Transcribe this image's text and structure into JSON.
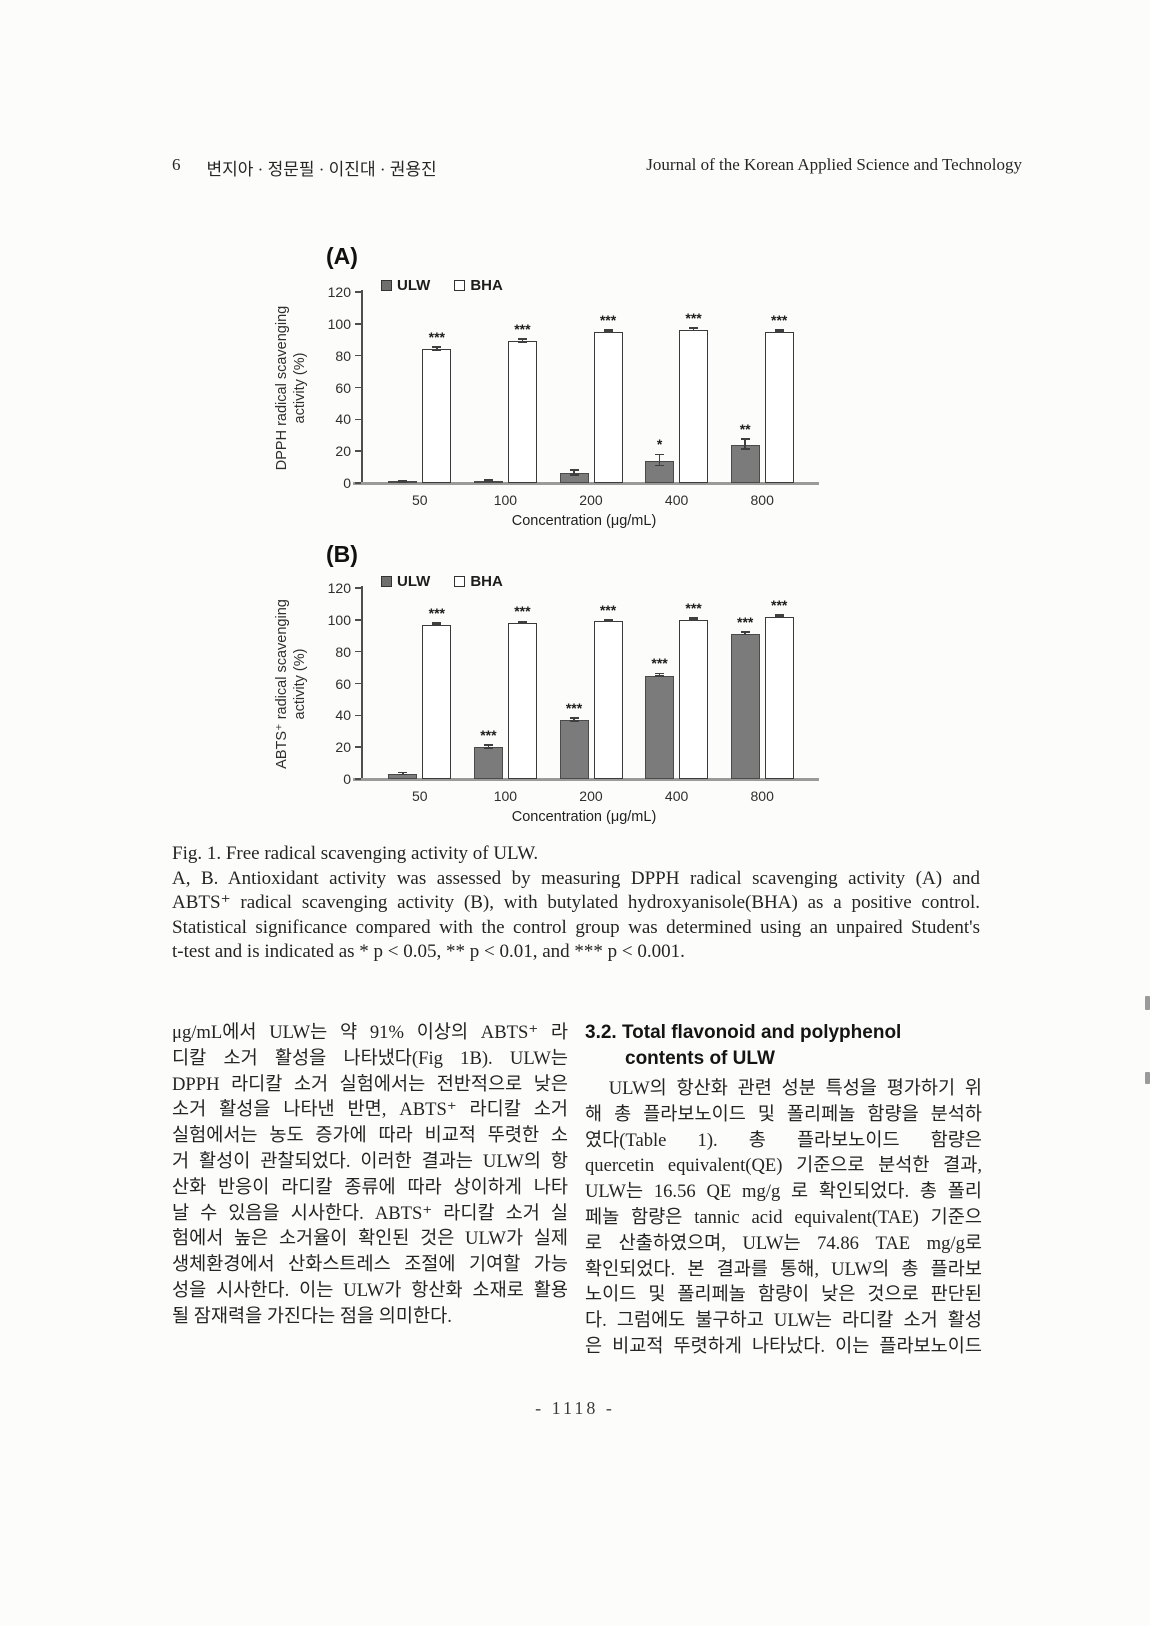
{
  "header": {
    "page_no": "6",
    "authors": "변지아 · 정문필 · 이진대 · 권용진",
    "journal": "Journal of the Korean Applied Science and Technology"
  },
  "figure": {
    "panel_a_label": "(A)",
    "panel_b_label": "(B)",
    "caption_lines": [
      "Fig. 1. Free radical scavenging activity of ULW.",
      "A, B. Antioxidant activity was assessed by measuring DPPH radical scavenging activity (A) and",
      "ABTS⁺ radical scavenging activity (B), with butylated hydroxyanisole(BHA) as a positive control.",
      "Statistical significance compared with the control group was determined using an unpaired Student's",
      "t-test and is indicated as * p < 0.05, ** p < 0.01, and *** p < 0.001."
    ]
  },
  "chart_data": [
    {
      "type": "bar",
      "panel": "A",
      "title": "",
      "ylabel": "DPPH radical scavenging activity (%)",
      "ylabel_lines": [
        "DPPH radical scavenging",
        "activity (%)"
      ],
      "xlabel": "Concentration (μg/mL)",
      "categories": [
        "50",
        "100",
        "200",
        "400",
        "800"
      ],
      "ylim": [
        0,
        120
      ],
      "yticks": [
        0,
        20,
        40,
        60,
        80,
        100,
        120
      ],
      "legend": [
        "ULW",
        "BHA"
      ],
      "legend_position": "top-left",
      "grid": false,
      "series": [
        {
          "name": "ULW",
          "values": [
            0.5,
            1,
            6,
            14,
            24
          ],
          "errors": [
            0.4,
            0.4,
            1.5,
            3.5,
            3.0
          ],
          "sig": [
            "",
            "",
            "",
            "*",
            "**"
          ]
        },
        {
          "name": "BHA",
          "values": [
            84,
            89,
            95,
            96,
            95
          ],
          "errors": [
            1.0,
            1.0,
            0.8,
            0.8,
            0.8
          ],
          "sig": [
            "***",
            "***",
            "***",
            "***",
            "***"
          ]
        }
      ]
    },
    {
      "type": "bar",
      "panel": "B",
      "title": "",
      "ylabel": "ABTS⁺ radical scavenging activity (%)",
      "ylabel_lines": [
        "ABTS⁺ radical scavenging",
        "activity (%)"
      ],
      "xlabel": "Concentration (μg/mL)",
      "categories": [
        "50",
        "100",
        "200",
        "400",
        "800"
      ],
      "ylim": [
        0,
        120
      ],
      "yticks": [
        0,
        20,
        40,
        60,
        80,
        100,
        120
      ],
      "legend": [
        "ULW",
        "BHA"
      ],
      "legend_position": "top-left",
      "grid": false,
      "series": [
        {
          "name": "ULW",
          "values": [
            3,
            20,
            37,
            65,
            91
          ],
          "errors": [
            0.6,
            1.0,
            1.0,
            0.8,
            0.8
          ],
          "sig": [
            "",
            "***",
            "***",
            "***",
            "***"
          ]
        },
        {
          "name": "BHA",
          "values": [
            97,
            98,
            99,
            100,
            102
          ],
          "errors": [
            0.5,
            0.5,
            0.5,
            0.5,
            0.5
          ],
          "sig": [
            "***",
            "***",
            "***",
            "***",
            "***"
          ]
        }
      ]
    }
  ],
  "body": {
    "left_column_lines": [
      "μg/mL에서 ULW는 약 91% 이상의 ABTS⁺ 라",
      "디칼 소거 활성을 나타냈다(Fig 1B). ULW는",
      "DPPH 라디칼 소거 실험에서는 전반적으로 낮은",
      "소거 활성을 나타낸 반면, ABTS⁺ 라디칼 소거",
      "실험에서는 농도 증가에 따라 비교적 뚜렷한 소",
      "거 활성이 관찰되었다. 이러한 결과는 ULW의 항",
      "산화 반응이 라디칼 종류에 따라 상이하게 나타",
      "날 수 있음을 시사한다. ABTS⁺ 라디칼 소거 실",
      "험에서 높은 소거율이 확인된 것은 ULW가 실제",
      "생체환경에서 산화스트레스 조절에 기여할 가능",
      "성을 시사한다. 이는 ULW가 항산화 소재로 활용",
      "될 잠재력을 가진다는 점을 의미한다."
    ],
    "right_column": {
      "heading_lines": [
        "3.2. Total flavonoid and polyphenol",
        "contents of ULW"
      ],
      "lines": [
        "　ULW의 항산화 관련 성분 특성을 평가하기 위",
        "해 총 플라보노이드 및 폴리페놀 함량을 분석하",
        "였다(Table 1). 총 플라보노이드 함량은",
        "quercetin equivalent(QE) 기준으로 분석한 결과,",
        "ULW는 16.56 QE mg/g 로 확인되었다. 총 폴리",
        "페놀 함량은 tannic acid equivalent(TAE) 기준으",
        "로 산출하였으며, ULW는 74.86 TAE mg/g로",
        "확인되었다. 본 결과를 통해, ULW의 총 플라보",
        "노이드 및 폴리페놀 함량이 낮은 것으로 판단된",
        "다. 그럼에도 불구하고 ULW는 라디칼 소거 활성",
        "은 비교적 뚜렷하게 나타났다. 이는 플라보노이드"
      ]
    }
  },
  "page": {
    "number_label": "- 1118 -"
  }
}
